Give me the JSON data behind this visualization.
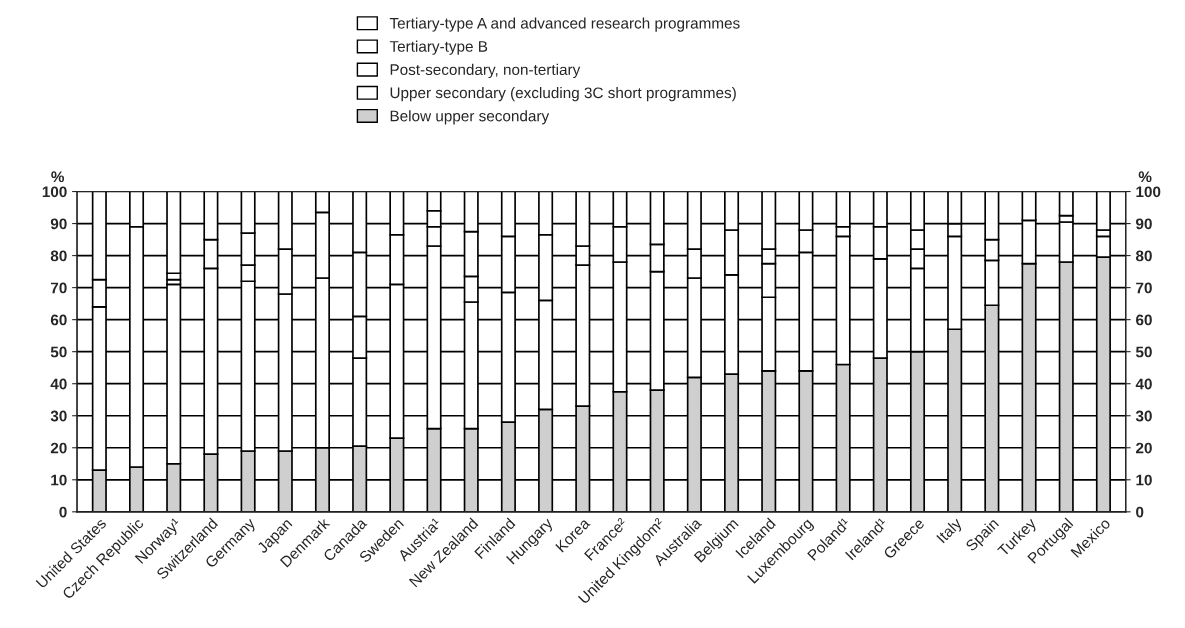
{
  "chart_data": {
    "type": "bar",
    "stacked": true,
    "categories": [
      "United States",
      "Czech Republic",
      "Norway¹",
      "Switzerland",
      "Germany",
      "Japan",
      "Denmark",
      "Canada",
      "Sweden",
      "Austria¹",
      "New Zealand",
      "Finland",
      "Hungary",
      "Korea",
      "France²",
      "United Kingdom²",
      "Australia",
      "Belgium",
      "Iceland",
      "Luxembourg",
      "Poland¹",
      "Ireland¹",
      "Greece",
      "Italy",
      "Spain",
      "Turkey",
      "Portugal",
      "Mexico"
    ],
    "series": [
      {
        "name": "Below upper secondary",
        "color": "#cfcfcf",
        "values": [
          13,
          14,
          15,
          18,
          19,
          19,
          20,
          20.5,
          23,
          26,
          26,
          28,
          32,
          33,
          37.5,
          38,
          42,
          43,
          44,
          44,
          46,
          48,
          50,
          57,
          64.5,
          77.5,
          78,
          79.5
        ]
      },
      {
        "name": "Upper secondary (excluding 3C short programmes)",
        "color": "#ffffff",
        "values": [
          51,
          75,
          56,
          58,
          53,
          49,
          53,
          27.5,
          48,
          57,
          39.5,
          40.5,
          34,
          44,
          40.5,
          37,
          31,
          31,
          23,
          37,
          40,
          31,
          26,
          29,
          14,
          13.5,
          12.5,
          6.5
        ]
      },
      {
        "name": "Post-secondary, non-tertiary",
        "color": "#ffffff",
        "values": [
          0,
          0,
          1.5,
          0,
          5,
          0,
          0,
          13,
          0,
          6,
          8,
          0,
          0,
          0,
          0,
          0,
          0,
          0,
          10.5,
          0,
          0,
          0,
          6,
          0,
          0,
          0,
          0,
          0
        ]
      },
      {
        "name": "Tertiary-type B",
        "color": "#ffffff",
        "values": [
          8.5,
          0,
          2,
          9,
          10,
          14,
          20.5,
          20,
          15.5,
          5,
          14,
          17.5,
          20.5,
          6,
          11,
          8.5,
          9,
          14,
          4.5,
          7,
          3,
          10,
          6,
          4,
          6.5,
          0,
          2,
          2
        ]
      },
      {
        "name": "Tertiary-type A and advanced research programmes",
        "color": "#ffffff",
        "values": [
          27.5,
          11,
          25.5,
          15,
          13,
          18,
          6.5,
          19,
          13.5,
          6,
          12.5,
          14,
          13.5,
          17,
          11,
          16.5,
          18,
          12,
          18,
          12,
          11,
          11,
          12,
          10,
          15,
          9,
          7.5,
          12
        ]
      }
    ],
    "ylabel": "%",
    "y2label": "%",
    "ylim": [
      0,
      100
    ],
    "yticks": [
      0,
      10,
      20,
      30,
      40,
      50,
      60,
      70,
      80,
      90,
      100
    ],
    "y2lim": [
      0,
      100
    ],
    "y2ticks": [
      0,
      10,
      20,
      30,
      40,
      50,
      60,
      70,
      80,
      90,
      100
    ],
    "grid": "y",
    "legend": "top"
  }
}
